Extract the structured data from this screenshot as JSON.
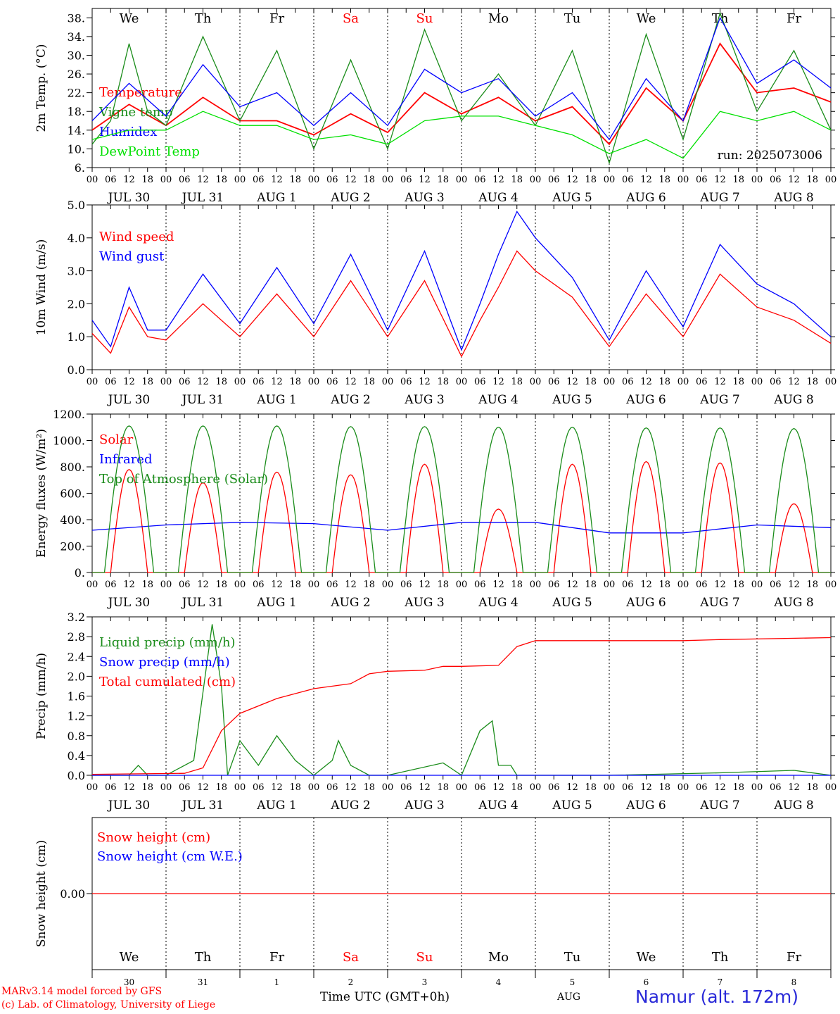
{
  "chart_data": [
    {
      "type": "line",
      "ylabel": "2m Temp. (°C)",
      "ylim": [
        6,
        40
      ],
      "yticks": [
        "6.",
        "10.",
        "14.",
        "18.",
        "22.",
        "26.",
        "30.",
        "34.",
        "38."
      ],
      "ytick_values": [
        6,
        10,
        14,
        18,
        22,
        26,
        30,
        34,
        38
      ],
      "day_names": [
        "We",
        "Th",
        "Fr",
        "Sa",
        "Su",
        "Mo",
        "Tu",
        "We",
        "Th",
        "Fr"
      ],
      "day_name_colors": [
        "#000000",
        "#000000",
        "#000000",
        "#ff0000",
        "#ff0000",
        "#000000",
        "#000000",
        "#000000",
        "#000000",
        "#000000"
      ],
      "annotation": "run: 2025073006",
      "series": [
        {
          "name": "Temperature",
          "color": "#ff0000",
          "x": [
            0,
            12,
            24,
            36,
            48,
            60,
            72,
            84,
            96,
            108,
            120,
            132,
            144,
            156,
            168,
            180,
            192,
            204,
            216,
            228,
            240
          ],
          "values": [
            14,
            19.5,
            15,
            21,
            16,
            16,
            13,
            17.5,
            13.5,
            22,
            17.5,
            21,
            16,
            19,
            11,
            23,
            16,
            32.5,
            22,
            23,
            20
          ]
        },
        {
          "name": "Vigne temp",
          "color": "#1a8c1a",
          "x": [
            0,
            6,
            12,
            18,
            24,
            36,
            48,
            60,
            72,
            84,
            96,
            108,
            120,
            132,
            144,
            156,
            168,
            180,
            192,
            204,
            216,
            228,
            240
          ],
          "values": [
            11,
            16,
            32.5,
            18,
            15,
            34,
            16,
            31,
            10,
            29,
            10,
            35.5,
            16,
            26,
            15,
            31,
            7,
            34.5,
            12,
            39,
            18,
            31,
            14
          ]
        },
        {
          "name": "Humidex",
          "color": "#0000ff",
          "x": [
            0,
            12,
            24,
            36,
            48,
            60,
            72,
            84,
            96,
            108,
            120,
            132,
            144,
            156,
            168,
            180,
            192,
            204,
            216,
            228,
            240
          ],
          "values": [
            16,
            24,
            17,
            28,
            19,
            22,
            15,
            22,
            15,
            27,
            22,
            25,
            17,
            22,
            12,
            25,
            16,
            38,
            24,
            29,
            23
          ]
        },
        {
          "name": "DewPoint Temp",
          "color": "#00e000",
          "x": [
            0,
            12,
            24,
            36,
            48,
            60,
            72,
            84,
            96,
            108,
            120,
            132,
            144,
            156,
            168,
            180,
            192,
            204,
            216,
            228,
            240
          ],
          "values": [
            12,
            14,
            14,
            18,
            15,
            15,
            12,
            13,
            11,
            16,
            17,
            17,
            15,
            13,
            9,
            12,
            8,
            18,
            16,
            18,
            14
          ]
        }
      ],
      "xtick_hours": [
        "00",
        "06",
        "12",
        "18"
      ],
      "xdate_labels": [
        "JUL 30",
        "JUL 31",
        "AUG  1",
        "AUG  2",
        "AUG  3",
        "AUG  4",
        "AUG  5",
        "AUG  6",
        "AUG  7",
        "AUG  8"
      ]
    },
    {
      "type": "line",
      "ylabel": "10m Wind (m/s)",
      "ylim": [
        0,
        5
      ],
      "yticks": [
        "0.0",
        "1.0",
        "2.0",
        "3.0",
        "4.0",
        "5.0"
      ],
      "ytick_values": [
        0,
        1,
        2,
        3,
        4,
        5
      ],
      "series": [
        {
          "name": "Wind speed",
          "color": "#ff0000",
          "x": [
            0,
            6,
            12,
            18,
            24,
            36,
            48,
            60,
            72,
            84,
            96,
            108,
            120,
            126,
            132,
            138,
            144,
            156,
            168,
            180,
            192,
            204,
            216,
            228,
            240
          ],
          "values": [
            1.1,
            0.5,
            1.9,
            1.0,
            0.9,
            2.0,
            1.0,
            2.3,
            1.0,
            2.7,
            1.0,
            2.7,
            0.4,
            1.5,
            2.5,
            3.6,
            3.0,
            2.2,
            0.7,
            2.3,
            1.0,
            2.9,
            1.9,
            1.5,
            0.8
          ]
        },
        {
          "name": "Wind gust",
          "color": "#0000ff",
          "x": [
            0,
            6,
            12,
            18,
            24,
            36,
            48,
            60,
            72,
            84,
            96,
            108,
            120,
            126,
            132,
            138,
            144,
            156,
            168,
            180,
            192,
            204,
            216,
            228,
            240
          ],
          "values": [
            1.5,
            0.7,
            2.5,
            1.2,
            1.2,
            2.9,
            1.4,
            3.1,
            1.4,
            3.5,
            1.2,
            3.6,
            0.6,
            2.0,
            3.5,
            4.8,
            4.0,
            2.8,
            0.9,
            3.0,
            1.3,
            3.8,
            2.6,
            2.0,
            1.0
          ]
        }
      ],
      "xtick_hours": [
        "00",
        "06",
        "12",
        "18"
      ],
      "xdate_labels": [
        "JUL 30",
        "JUL 31",
        "AUG  1",
        "AUG  2",
        "AUG  3",
        "AUG  4",
        "AUG  5",
        "AUG  6",
        "AUG  7",
        "AUG  8"
      ]
    },
    {
      "type": "line",
      "ylabel": "Energy fluxes (W/m²)",
      "ylim": [
        0,
        1200
      ],
      "yticks": [
        "0.",
        "200.",
        "400.",
        "600.",
        "800.",
        "1000.",
        "1200."
      ],
      "ytick_values": [
        0,
        200,
        400,
        600,
        800,
        1000,
        1200
      ],
      "series": [
        {
          "name": "Solar",
          "color": "#ff0000",
          "peaks": [
            780,
            680,
            760,
            740,
            820,
            480,
            820,
            840,
            830,
            520
          ]
        },
        {
          "name": "Infrared",
          "color": "#0000ff",
          "x": [
            0,
            24,
            48,
            72,
            96,
            120,
            144,
            168,
            192,
            216,
            240
          ],
          "values": [
            320,
            360,
            380,
            370,
            320,
            380,
            380,
            300,
            300,
            360,
            340
          ]
        },
        {
          "name": "Top of Atmosphere (Solar)",
          "color": "#1a8c1a",
          "peaks": [
            1110,
            1110,
            1110,
            1105,
            1105,
            1100,
            1100,
            1095,
            1095,
            1090
          ]
        }
      ],
      "xtick_hours": [
        "00",
        "06",
        "12",
        "18"
      ],
      "xdate_labels": [
        "JUL 30",
        "JUL 31",
        "AUG  1",
        "AUG  2",
        "AUG  3",
        "AUG  4",
        "AUG  5",
        "AUG  6",
        "AUG  7",
        "AUG  8"
      ]
    },
    {
      "type": "line",
      "ylabel": "Precip (mm/h)",
      "ylim": [
        0,
        3.2
      ],
      "yticks": [
        "0.0",
        "0.4",
        "0.8",
        "1.2",
        "1.6",
        "2.0",
        "2.4",
        "2.8",
        "3.2"
      ],
      "ytick_values": [
        0,
        0.4,
        0.8,
        1.2,
        1.6,
        2.0,
        2.4,
        2.8,
        3.2
      ],
      "series": [
        {
          "name": "Liquid precip (mm/h)",
          "color": "#1a8c1a",
          "x": [
            0,
            12,
            15,
            18,
            24,
            33,
            39,
            42,
            44,
            48,
            54,
            60,
            66,
            72,
            78,
            80,
            84,
            90,
            96,
            114,
            120,
            126,
            130,
            132,
            136,
            138,
            144,
            168,
            204,
            228,
            240
          ],
          "values": [
            0,
            0,
            0.2,
            0,
            0,
            0.3,
            3.05,
            1.8,
            0,
            0.7,
            0.2,
            0.8,
            0.3,
            0,
            0.3,
            0.7,
            0.2,
            0,
            0,
            0.25,
            0,
            0.9,
            1.1,
            0.2,
            0.2,
            0,
            0,
            0,
            0.05,
            0.1,
            0
          ]
        },
        {
          "name": "Snow precip (mm/h)",
          "color": "#0000ff",
          "x": [
            0,
            240
          ],
          "values": [
            0,
            0
          ]
        },
        {
          "name": "Total cumulated (cm)",
          "color": "#ff0000",
          "x": [
            0,
            30,
            36,
            42,
            48,
            60,
            72,
            84,
            90,
            96,
            108,
            114,
            120,
            132,
            138,
            144,
            168,
            192,
            204,
            240
          ],
          "values": [
            0.02,
            0.04,
            0.15,
            0.9,
            1.25,
            1.55,
            1.75,
            1.85,
            2.05,
            2.1,
            2.12,
            2.2,
            2.2,
            2.22,
            2.6,
            2.72,
            2.72,
            2.72,
            2.74,
            2.78
          ]
        }
      ],
      "xtick_hours": [
        "00",
        "06",
        "12",
        "18"
      ],
      "xdate_labels": [
        "JUL 30",
        "JUL 31",
        "AUG  1",
        "AUG  2",
        "AUG  3",
        "AUG  4",
        "AUG  5",
        "AUG  6",
        "AUG  7",
        "AUG  8"
      ]
    },
    {
      "type": "line",
      "ylabel": "Snow height (cm)",
      "yticks": [
        "0.00"
      ],
      "ytick_values": [
        0
      ],
      "series": [
        {
          "name": "Snow height (cm)",
          "color": "#ff0000",
          "x": [
            0,
            240
          ],
          "values": [
            0,
            0
          ]
        },
        {
          "name": "Snow height (cm W.E.)",
          "color": "#0000ff"
        }
      ],
      "day_names": [
        "We",
        "Th",
        "Fr",
        "Sa",
        "Su",
        "Mo",
        "Tu",
        "We",
        "Th",
        "Fr"
      ],
      "day_name_colors": [
        "#000000",
        "#000000",
        "#000000",
        "#ff0000",
        "#ff0000",
        "#000000",
        "#000000",
        "#000000",
        "#000000",
        "#000000"
      ],
      "day_numbers": [
        "30",
        "31",
        "1",
        "2",
        "3",
        "4",
        "5",
        "6",
        "7",
        "8"
      ]
    }
  ],
  "footer": {
    "model": "MARv3.14 model forced by GFS",
    "lab": "(c) Lab. of Climatology, University of Liege",
    "time_label": "Time UTC (GMT+0h)",
    "month": "AUG",
    "location": "Namur (alt. 172m)"
  }
}
